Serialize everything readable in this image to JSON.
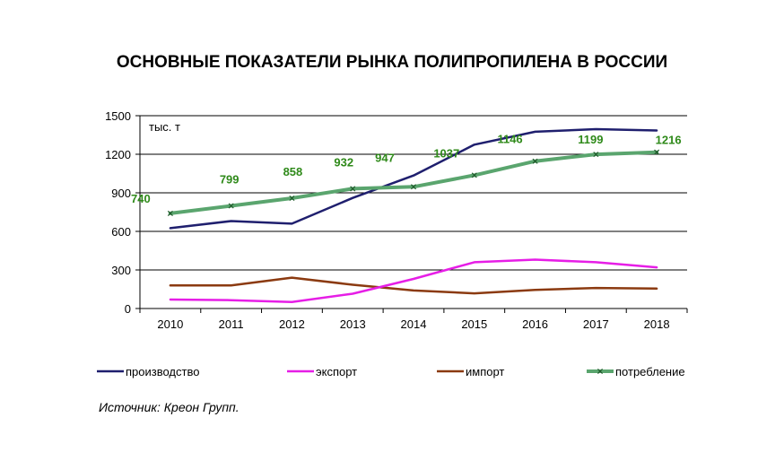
{
  "chart_data": {
    "type": "line",
    "title": "ОСНОВНЫЕ ПОКАЗАТЕЛИ РЫНКА ПОЛИПРОПИЛЕНА В РОССИИ",
    "unit_label": "тыс. т",
    "source": "Источник: Креон Групп.",
    "x": [
      "2010",
      "2011",
      "2012",
      "2013",
      "2014",
      "2015",
      "2016",
      "2017",
      "2018"
    ],
    "ylim": [
      0,
      1500
    ],
    "yticks": [
      0,
      300,
      600,
      900,
      1200,
      1500
    ],
    "grid": true,
    "legend_position": "bottom",
    "series": [
      {
        "name": "производство",
        "color": "#1f1f6e",
        "marker": "none",
        "values": [
          625,
          680,
          660,
          860,
          1035,
          1275,
          1375,
          1395,
          1385
        ]
      },
      {
        "name": "экспорт",
        "color": "#e61ee6",
        "marker": "none",
        "values": [
          70,
          65,
          50,
          115,
          230,
          360,
          380,
          360,
          320
        ]
      },
      {
        "name": "импорт",
        "color": "#8b3a10",
        "marker": "none",
        "values": [
          180,
          180,
          240,
          185,
          140,
          118,
          145,
          160,
          155
        ]
      },
      {
        "name": "потребление",
        "color": "#5aa56e",
        "marker": "x",
        "label_color": "#2f8a1a",
        "values": [
          740,
          799,
          858,
          932,
          947,
          1037,
          1146,
          1199,
          1216
        ],
        "labels": [
          "740",
          "799",
          "858",
          "932",
          "947",
          "1037",
          "1146",
          "1199",
          "1216"
        ]
      }
    ]
  }
}
